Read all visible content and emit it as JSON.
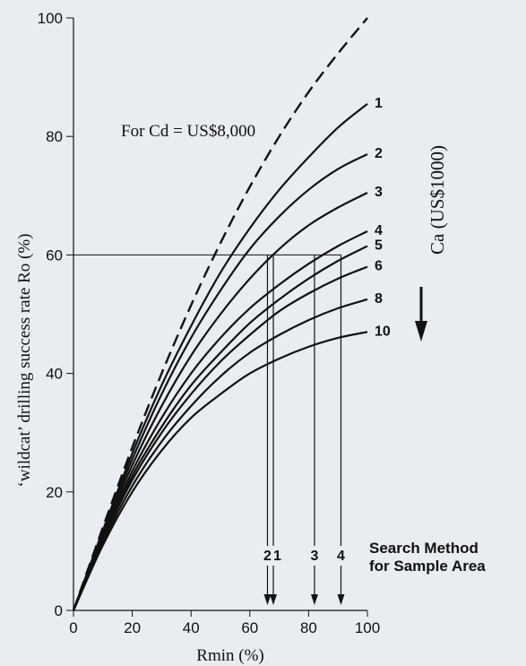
{
  "chart_data": {
    "type": "line",
    "title": "",
    "annotation": "For Cd = US$8,000",
    "xlabel": "Rmin (%)",
    "ylabel": "‘wildcat’ drilling success rate Ro (%)",
    "xlim": [
      0,
      100
    ],
    "ylim": [
      0,
      100
    ],
    "x_ticks": [
      "0",
      "20",
      "40",
      "60",
      "80",
      "100"
    ],
    "y_ticks": [
      "0",
      "20",
      "40",
      "60",
      "80",
      "100"
    ],
    "grid": false,
    "legend_title": "Ca (US$1000)",
    "series": [
      {
        "name": "",
        "style": "dashed",
        "x": [
          0,
          10,
          20,
          30,
          40,
          50,
          60,
          70,
          80,
          90,
          100
        ],
        "y": [
          0,
          14,
          27.5,
          40,
          51.5,
          62,
          71.5,
          80,
          87.5,
          94,
          100
        ]
      },
      {
        "name": "1",
        "x": [
          0,
          10,
          20,
          30,
          40,
          50,
          60,
          70,
          80,
          90,
          100
        ],
        "y": [
          0,
          13.5,
          26.5,
          38,
          48,
          57,
          64.5,
          71,
          76.5,
          81.5,
          85.5
        ]
      },
      {
        "name": "2",
        "x": [
          0,
          10,
          20,
          30,
          40,
          50,
          60,
          70,
          80,
          90,
          100
        ],
        "y": [
          0,
          13.2,
          25.5,
          36.5,
          46,
          54,
          61,
          66.5,
          71,
          74.5,
          77
        ]
      },
      {
        "name": "3",
        "x": [
          0,
          10,
          20,
          30,
          40,
          50,
          60,
          70,
          80,
          90,
          100
        ],
        "y": [
          0,
          13,
          24.5,
          34.5,
          43,
          50,
          56,
          61,
          65,
          68,
          70.5
        ]
      },
      {
        "name": "4",
        "x": [
          0,
          10,
          20,
          30,
          40,
          50,
          60,
          70,
          80,
          90,
          100
        ],
        "y": [
          0,
          12.5,
          23.5,
          32.5,
          40,
          46,
          51,
          55,
          58.5,
          61.5,
          64
        ]
      },
      {
        "name": "5",
        "x": [
          0,
          10,
          20,
          30,
          40,
          50,
          60,
          70,
          80,
          90,
          100
        ],
        "y": [
          0,
          12.2,
          22.7,
          31,
          38,
          43.5,
          48.5,
          52.5,
          56,
          59,
          61.5
        ]
      },
      {
        "name": "6",
        "x": [
          0,
          10,
          20,
          30,
          40,
          50,
          60,
          70,
          80,
          90,
          100
        ],
        "y": [
          0,
          12,
          22,
          30,
          36.5,
          42,
          46.5,
          50.5,
          53.5,
          56,
          58
        ]
      },
      {
        "name": "8",
        "x": [
          0,
          10,
          20,
          30,
          40,
          50,
          60,
          70,
          80,
          90,
          100
        ],
        "y": [
          0,
          11.5,
          21,
          28.5,
          34.5,
          39.5,
          43.5,
          46.5,
          49,
          51,
          52.5
        ]
      },
      {
        "name": "10",
        "x": [
          0,
          10,
          20,
          30,
          40,
          50,
          60,
          70,
          80,
          90,
          100
        ],
        "y": [
          0,
          11,
          20,
          27,
          32.5,
          36.5,
          40,
          42.5,
          44.5,
          46,
          47
        ]
      }
    ],
    "reference_line": {
      "y": 60,
      "x_from": 0,
      "x_to": 91
    },
    "drop_arrows": [
      {
        "label": "2",
        "x": 66
      },
      {
        "label": "1",
        "x": 68
      },
      {
        "label": "3",
        "x": 82
      },
      {
        "label": "4",
        "x": 91
      }
    ],
    "search_method_label": [
      "Search Method",
      "for Sample Area"
    ]
  }
}
